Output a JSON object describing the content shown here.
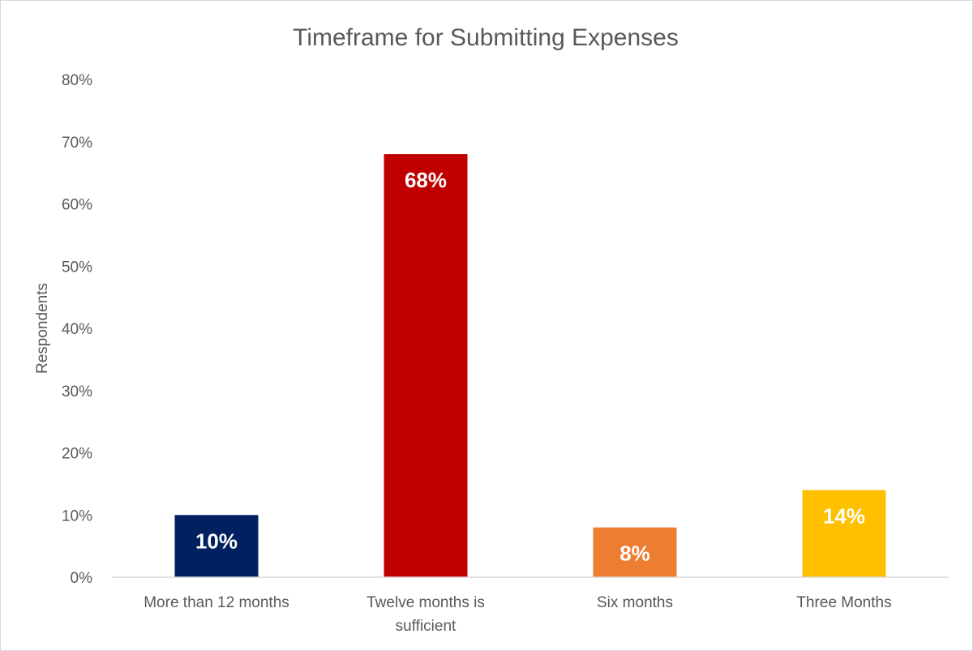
{
  "chart_data": {
    "type": "bar",
    "title": "Timeframe for Submitting Expenses",
    "xlabel": "",
    "ylabel": "Respondents",
    "categories": [
      [
        "More than 12 months"
      ],
      [
        "Twelve months is",
        "sufficient"
      ],
      [
        "Six months"
      ],
      [
        "Three Months"
      ]
    ],
    "values": [
      10,
      68,
      8,
      14
    ],
    "data_labels": [
      "10%",
      "68%",
      "8%",
      "14%"
    ],
    "colors": [
      "#002060",
      "#c00000",
      "#ed7d31",
      "#ffc000"
    ],
    "ylim": [
      0,
      80
    ],
    "yticks": [
      0,
      10,
      20,
      30,
      40,
      50,
      60,
      70,
      80
    ],
    "ytick_labels": [
      "0%",
      "10%",
      "20%",
      "30%",
      "40%",
      "50%",
      "60%",
      "70%",
      "80%"
    ],
    "grid": false,
    "legend": "none"
  }
}
